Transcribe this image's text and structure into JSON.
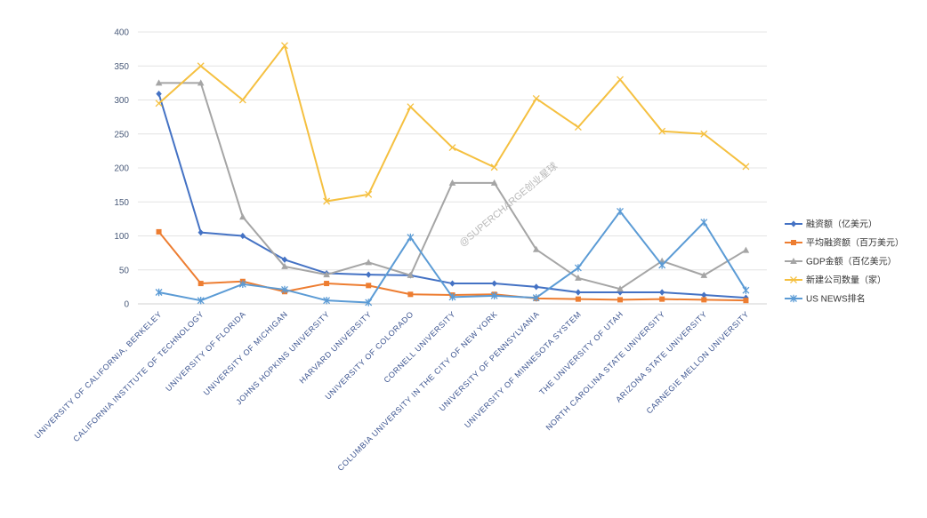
{
  "chart_data": {
    "type": "line",
    "categories": [
      "UNIVERSITY OF CALIFORNIA, BERKELEY",
      "CALIFORNIA INSTITUTE OF TECHNOLOGY",
      "UNIVERSITY OF FLORIDA",
      "UNIVERSITY OF MICHIGAN",
      "JOHNS HOPKINS UNIVERSITY",
      "HARVARD UNIVERSITY",
      "UNIVERSITY OF COLORADO",
      "CORNELL UNIVERSITY",
      "COLUMBIA UNIVERSITY IN THE CITY OF NEW YORK",
      "UNIVERSITY OF PENNSYLVANIA",
      "UNIVERSITY OF MINNESOTA SYSTEM",
      "THE UNIVERSITY OF UTAH",
      "NORTH CAROLINA STATE UNIVERSITY",
      "ARIZONA STATE UNIVERSITY",
      "CARNEGIE MELLON UNIVERSITY"
    ],
    "ylim": [
      0,
      400
    ],
    "yticks": [
      0,
      50,
      100,
      150,
      200,
      250,
      300,
      350,
      400
    ],
    "grid": true,
    "legend_position": "right",
    "series": [
      {
        "name": "融资额（亿美元）",
        "color": "#4472c4",
        "marker": "diamond",
        "values": [
          309,
          105,
          100,
          65,
          45,
          43,
          42,
          30,
          30,
          25,
          17,
          17,
          17,
          13,
          9
        ]
      },
      {
        "name": "平均融资额（百万美元）",
        "color": "#ed7d31",
        "marker": "square",
        "values": [
          106,
          30,
          33,
          18,
          30,
          27,
          14,
          13,
          14,
          8,
          7,
          6,
          7,
          6,
          5
        ]
      },
      {
        "name": "GDP金额（百亿美元）",
        "color": "#a5a5a5",
        "marker": "triangle",
        "values": [
          325,
          325,
          128,
          55,
          43,
          61,
          42,
          178,
          178,
          80,
          38,
          22,
          63,
          42,
          79
        ]
      },
      {
        "name": "新建公司数量（家）",
        "color": "#f5c040",
        "marker": "x",
        "values": [
          295,
          350,
          300,
          380,
          151,
          161,
          290,
          230,
          201,
          302,
          260,
          330,
          254,
          250,
          202
        ]
      },
      {
        "name": "US NEWS排名",
        "color": "#5b9bd5",
        "marker": "star",
        "values": [
          17,
          5,
          29,
          21,
          5,
          2,
          98,
          10,
          12,
          9,
          53,
          136,
          57,
          120,
          20
        ]
      }
    ]
  },
  "watermark": "@SUPERCHARGE创业星球"
}
